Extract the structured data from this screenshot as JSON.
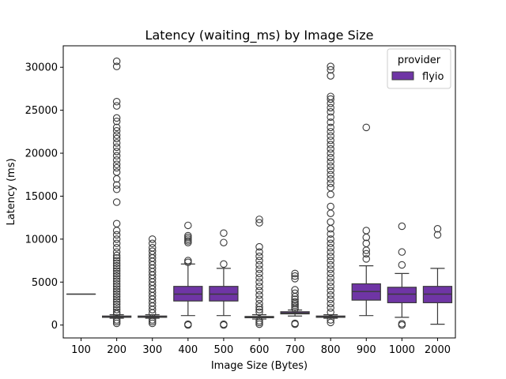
{
  "chart_data": {
    "type": "box",
    "title": "Latency (waiting_ms) by Image Size",
    "xlabel": "Image Size (Bytes)",
    "ylabel": "Latency (ms)",
    "categories": [
      "100",
      "200",
      "300",
      "400",
      "500",
      "600",
      "700",
      "800",
      "900",
      "1000",
      "2000"
    ],
    "ylim": [
      -1500,
      32500
    ],
    "yticks": [
      0,
      5000,
      10000,
      15000,
      20000,
      25000,
      30000
    ],
    "grid": false,
    "legend": {
      "title": "provider",
      "placement": "top-right",
      "entries": [
        "flyio"
      ]
    },
    "colors": {
      "box_fill": "#6f35a5",
      "box_edge": "#3a3a3a",
      "outlier_edge": "#3a3a3a"
    },
    "series": [
      {
        "name": "flyio",
        "boxes": [
          {
            "category": "100",
            "q1": 3600,
            "median": 3600,
            "q3": 3600,
            "whisker_low": 3600,
            "whisker_high": 3600,
            "outliers": []
          },
          {
            "category": "200",
            "q1": 900,
            "median": 950,
            "q3": 1050,
            "whisker_low": 800,
            "whisker_high": 1200,
            "outliers": [
              200,
              400,
              600,
              1300,
              1500,
              1800,
              2100,
              2400,
              2700,
              3000,
              3300,
              3600,
              3900,
              4200,
              4500,
              4800,
              5100,
              5400,
              5700,
              6000,
              6300,
              6600,
              6900,
              7200,
              7500,
              7800,
              8100,
              8500,
              9000,
              9500,
              10000,
              10500,
              11000,
              11800,
              14300,
              15800,
              16300,
              17000,
              17800,
              18300,
              18700,
              19200,
              19700,
              20200,
              20700,
              21200,
              21700,
              22100,
              22600,
              23000,
              23700,
              24100,
              25500,
              26000,
              30100,
              30700
            ]
          },
          {
            "category": "300",
            "q1": 900,
            "median": 950,
            "q3": 1050,
            "whisker_low": 800,
            "whisker_high": 1200,
            "outliers": [
              200,
              400,
              600,
              1400,
              1800,
              2200,
              2600,
              3000,
              3400,
              3800,
              4200,
              4600,
              5000,
              5400,
              5800,
              6200,
              6600,
              7000,
              7400,
              7800,
              8200,
              8600,
              9000,
              9500,
              10000
            ]
          },
          {
            "category": "400",
            "q1": 2800,
            "median": 3600,
            "q3": 4500,
            "whisker_low": 1100,
            "whisker_high": 7100,
            "outliers": [
              0,
              100,
              7300,
              7500,
              9600,
              9800,
              10000,
              10200,
              10400,
              11600
            ]
          },
          {
            "category": "500",
            "q1": 2800,
            "median": 3600,
            "q3": 4500,
            "whisker_low": 1100,
            "whisker_high": 6600,
            "outliers": [
              0,
              100,
              7100,
              9600,
              10700
            ]
          },
          {
            "category": "600",
            "q1": 850,
            "median": 900,
            "q3": 1000,
            "whisker_low": 700,
            "whisker_high": 1200,
            "outliers": [
              100,
              300,
              500,
              1500,
              1800,
              2100,
              2500,
              3000,
              3500,
              4000,
              4500,
              5000,
              5500,
              6000,
              6500,
              7000,
              7500,
              8000,
              8500,
              9100,
              11900,
              12300
            ]
          },
          {
            "category": "700",
            "q1": 1300,
            "median": 1400,
            "q3": 1550,
            "whisker_low": 1050,
            "whisker_high": 1750,
            "outliers": [
              100,
              200,
              1900,
              2100,
              2300,
              2500,
              2700,
              3000,
              3300,
              3700,
              4100,
              5400,
              5700,
              6000
            ]
          },
          {
            "category": "800",
            "q1": 900,
            "median": 950,
            "q3": 1050,
            "whisker_low": 800,
            "whisker_high": 1200,
            "outliers": [
              300,
              600,
              1500,
              2000,
              2500,
              3000,
              3500,
              4000,
              4500,
              5000,
              5500,
              6000,
              6500,
              7000,
              7500,
              8000,
              8500,
              9000,
              9500,
              10000,
              10600,
              11200,
              12000,
              13000,
              13800,
              15200,
              16000,
              16500,
              17000,
              17500,
              18000,
              18500,
              19000,
              19500,
              20000,
              20500,
              21000,
              21500,
              22000,
              22500,
              23000,
              23600,
              24200,
              24800,
              25300,
              25800,
              26300,
              26600,
              29000,
              29700,
              30100
            ]
          },
          {
            "category": "900",
            "q1": 2900,
            "median": 3900,
            "q3": 4800,
            "whisker_low": 1100,
            "whisker_high": 6900,
            "outliers": [
              7700,
              8300,
              8700,
              9500,
              10200,
              11000,
              23000
            ]
          },
          {
            "category": "1000",
            "q1": 2600,
            "median": 3600,
            "q3": 4400,
            "whisker_low": 900,
            "whisker_high": 6000,
            "outliers": [
              0,
              150,
              7000,
              8500,
              11500
            ]
          },
          {
            "category": "2000",
            "q1": 2600,
            "median": 3600,
            "q3": 4500,
            "whisker_low": 100,
            "whisker_high": 6600,
            "outliers": [
              10500,
              11200
            ]
          }
        ]
      }
    ]
  }
}
